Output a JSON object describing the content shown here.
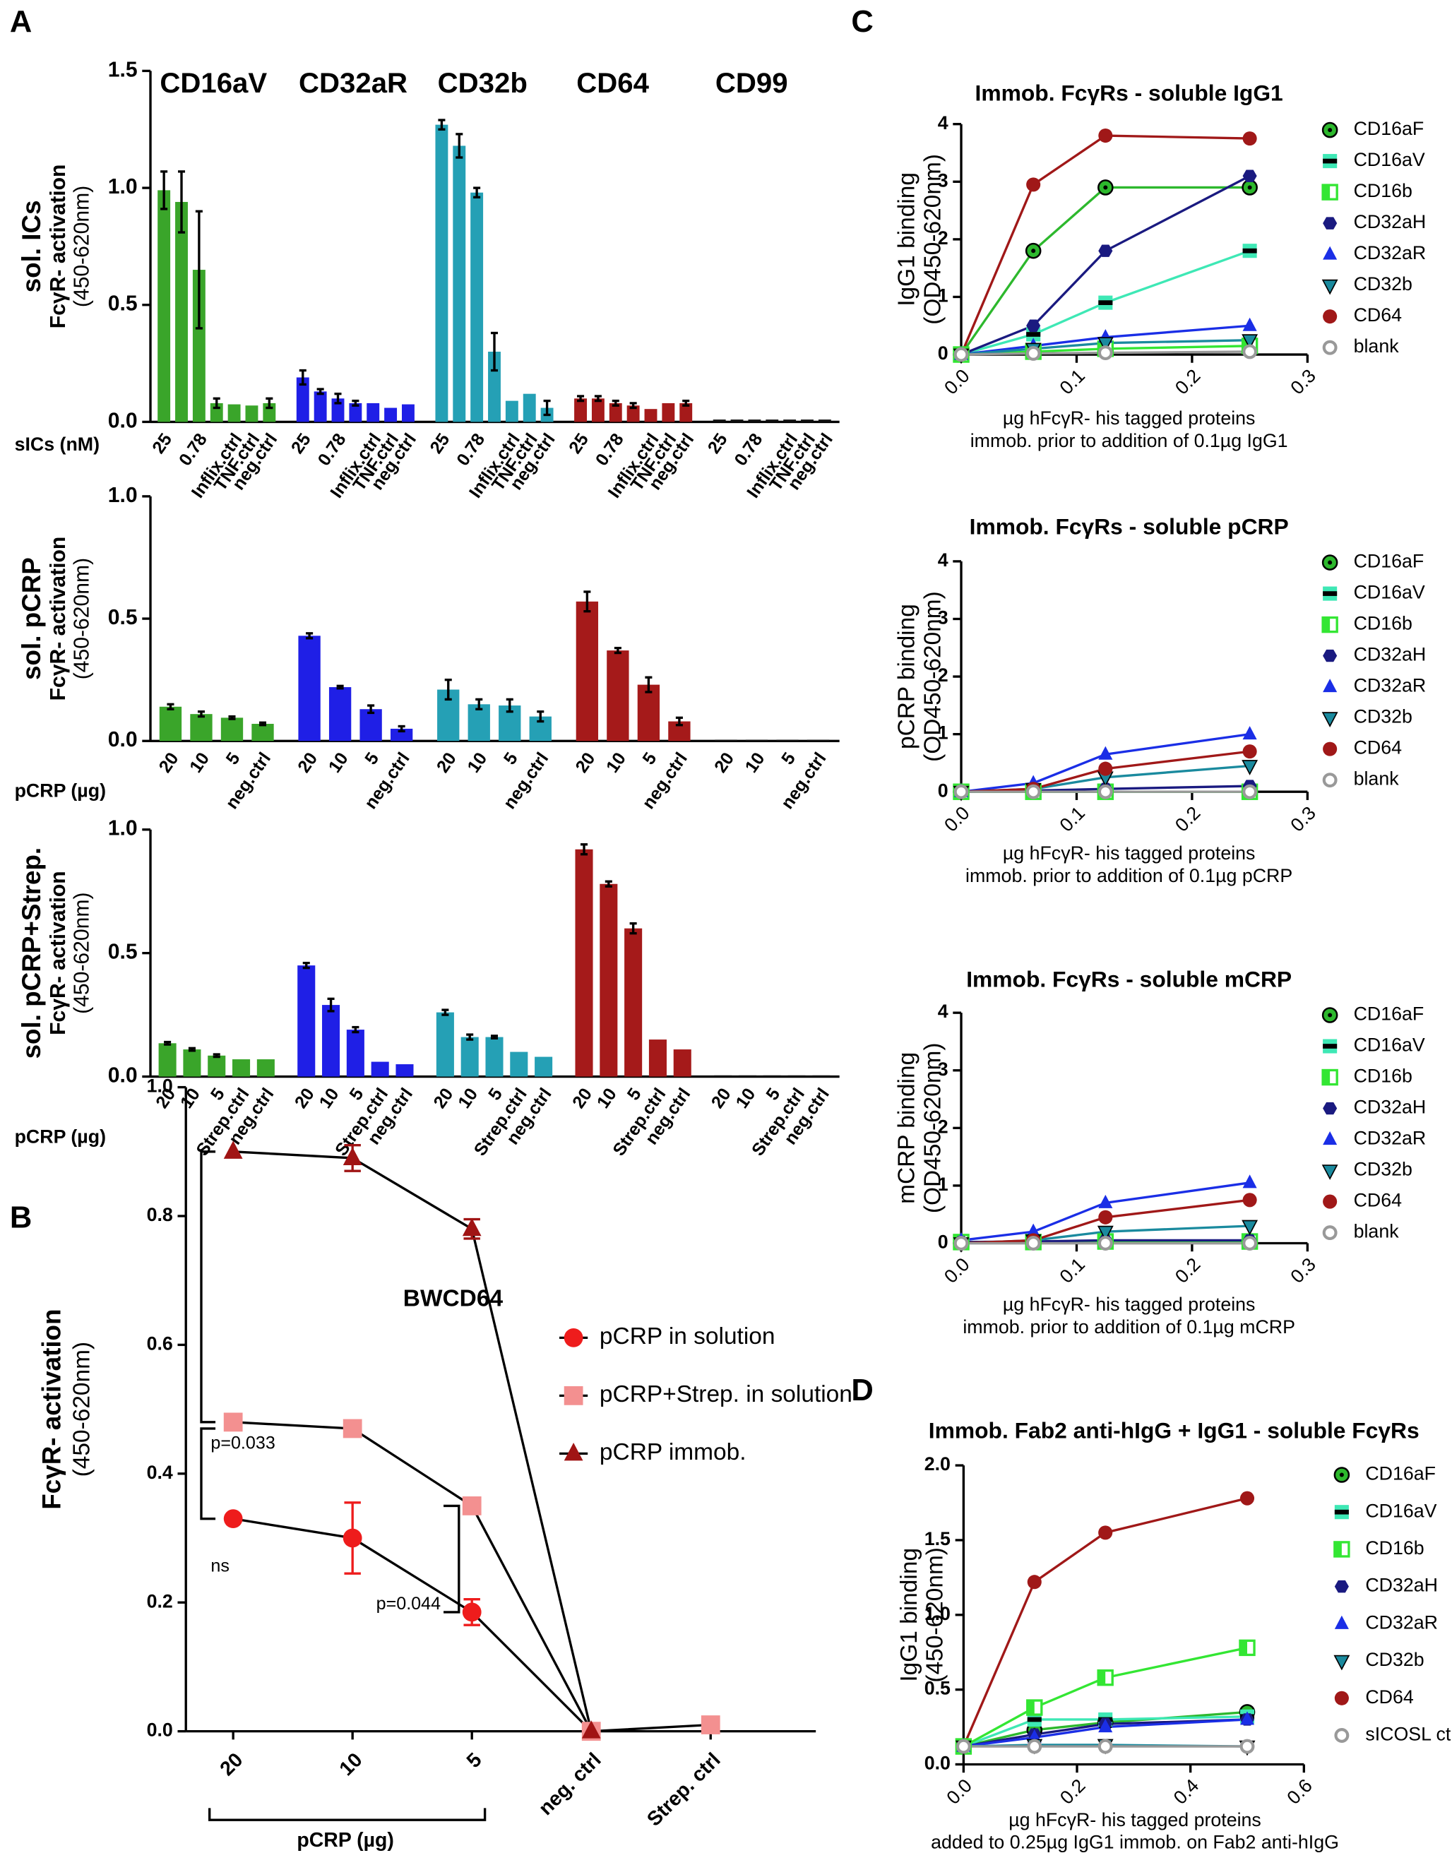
{
  "panel_labels": [
    "A",
    "B",
    "C",
    "D"
  ],
  "chart_data": [
    {
      "type": "bar",
      "y_label": [
        "sol. ICs",
        "FcγR- activation",
        "(450-620nm)"
      ],
      "x_label": "sICs (nM)",
      "categories": [
        "25",
        null,
        "0.78",
        null,
        "Inflix.ctrl",
        "TNF.ctrl",
        "neg.ctrl"
      ],
      "ylim": [
        0,
        1.5
      ],
      "yticks": [
        {
          "value": 0,
          "label": "0.0"
        },
        0.5,
        {
          "value": 1,
          "label": "1.0"
        },
        1.5
      ],
      "series": [
        {
          "name": "CD16aV",
          "color": "#3aa52a",
          "values": [
            0.99,
            0.94,
            0.65,
            0.08,
            0.075,
            0.07,
            0.08
          ],
          "errors": [
            0.08,
            0.13,
            0.25,
            0.02,
            null,
            null,
            0.02
          ]
        },
        {
          "name": "CD32aR",
          "color": "#1f1fe6",
          "values": [
            0.19,
            0.13,
            0.1,
            0.08,
            0.08,
            0.06,
            0.075
          ],
          "errors": [
            0.03,
            0.01,
            0.02,
            0.01,
            null,
            null,
            null
          ]
        },
        {
          "name": "CD32b",
          "color": "#25a0b5",
          "values": [
            1.27,
            1.18,
            0.98,
            0.3,
            0.09,
            0.12,
            0.06
          ],
          "errors": [
            0.02,
            0.05,
            0.02,
            0.08,
            null,
            null,
            0.03
          ]
        },
        {
          "name": "CD64",
          "color": "#a51a1a",
          "values": [
            0.1,
            0.1,
            0.08,
            0.07,
            0.055,
            0.08,
            0.08
          ],
          "errors": [
            0.01,
            0.01,
            0.01,
            0.01,
            null,
            null,
            0.01
          ]
        },
        {
          "name": "CD99",
          "color": "#111111",
          "values": [
            0.01,
            0.01,
            0.01,
            0.01,
            0.01,
            0.01,
            0.01
          ],
          "errors": [
            null,
            null,
            null,
            null,
            null,
            null,
            null
          ]
        }
      ]
    },
    {
      "type": "bar",
      "y_label": [
        "sol. pCRP",
        "FcγR- activation",
        "(450-620nm)"
      ],
      "x_label": "pCRP (µg)",
      "categories": [
        "20",
        "10",
        "5",
        "neg.ctrl"
      ],
      "ylim": [
        0,
        1
      ],
      "yticks": [
        {
          "value": 0,
          "label": "0.0"
        },
        0.5,
        {
          "value": 1,
          "label": "1.0"
        }
      ],
      "series": [
        {
          "color": "#3aa52a",
          "values": [
            0.14,
            0.11,
            0.095,
            0.07
          ],
          "errors": [
            0.01,
            0.01,
            0.005,
            0.005
          ]
        },
        {
          "color": "#1f1fe6",
          "values": [
            0.43,
            0.22,
            0.13,
            0.05
          ],
          "errors": [
            0.01,
            0.005,
            0.015,
            0.01
          ]
        },
        {
          "color": "#25a0b5",
          "values": [
            0.21,
            0.15,
            0.145,
            0.1
          ],
          "errors": [
            0.04,
            0.02,
            0.025,
            0.02
          ]
        },
        {
          "color": "#a51a1a",
          "values": [
            0.57,
            0.37,
            0.23,
            0.08
          ],
          "errors": [
            0.04,
            0.01,
            0.03,
            0.015
          ]
        },
        {
          "color": "#111111",
          "values": [
            0.005,
            0.005,
            0.005,
            0.005
          ],
          "errors": [
            null,
            null,
            null,
            null
          ]
        }
      ]
    },
    {
      "type": "bar",
      "y_label": [
        "sol. pCRP+Strep.",
        "FcγR- activation",
        "(450-620nm)"
      ],
      "x_label": "pCRP (µg)",
      "categories": [
        "20",
        "10",
        "5",
        "Strep.ctrl",
        "neg.ctrl"
      ],
      "ylim": [
        0,
        1
      ],
      "yticks": [
        {
          "value": 0,
          "label": "0.0"
        },
        0.5,
        {
          "value": 1,
          "label": "1.0"
        }
      ],
      "series": [
        {
          "color": "#3aa52a",
          "values": [
            0.135,
            0.11,
            0.085,
            0.07,
            0.07
          ],
          "errors": [
            0.005,
            0.005,
            0.005,
            null,
            null
          ]
        },
        {
          "color": "#1f1fe6",
          "values": [
            0.45,
            0.29,
            0.19,
            0.06,
            0.05
          ],
          "errors": [
            0.01,
            0.025,
            0.01,
            null,
            null
          ]
        },
        {
          "color": "#25a0b5",
          "values": [
            0.26,
            0.16,
            0.16,
            0.1,
            0.08
          ],
          "errors": [
            0.01,
            0.01,
            0.005,
            null,
            null
          ]
        },
        {
          "color": "#a51a1a",
          "values": [
            0.92,
            0.78,
            0.6,
            0.15,
            0.11
          ],
          "errors": [
            0.02,
            0.01,
            0.02,
            null,
            null
          ]
        },
        {
          "color": "#111111",
          "values": [
            0.005,
            0.005,
            0.005,
            0.005,
            0.005
          ],
          "errors": [
            null,
            null,
            null,
            null,
            null
          ]
        }
      ]
    },
    {
      "type": "line",
      "title": "BWCD64",
      "y_label": [
        "FcγR- activation",
        "(450-620nm)"
      ],
      "line_color": "#000000",
      "categories": [
        "20",
        "10",
        "5",
        "neg. ctrl",
        "Strep. ctrl"
      ],
      "group_label": "pCRP (µg)",
      "ylim": [
        0,
        1
      ],
      "yticks": [
        {
          "value": 0,
          "label": "0.0"
        },
        0.2,
        0.4,
        0.6,
        0.8,
        {
          "value": 1,
          "label": "1.0"
        }
      ],
      "annotations": [
        "p=0.033",
        "ns",
        "p=0.044"
      ],
      "series": [
        {
          "name": "pCRP in solution",
          "color": "#ee1c1c",
          "marker": "circle",
          "values": [
            0.33,
            0.3,
            0.185,
            0,
            null
          ],
          "errors": [
            null,
            0.055,
            0.02,
            null,
            null
          ]
        },
        {
          "name": "pCRP+Strep. in solution",
          "color": "#f39090",
          "marker": "square",
          "values": [
            0.48,
            0.47,
            0.35,
            0,
            0.01
          ]
        },
        {
          "name": "pCRP immob.",
          "color": "#a01414",
          "marker": "triangle",
          "values": [
            0.9,
            0.89,
            0.78,
            0,
            null
          ],
          "errors": [
            null,
            0.02,
            0.015,
            null,
            null
          ]
        }
      ]
    },
    {
      "type": "line",
      "title": "Immob. FcγRs - soluble IgG1",
      "y_label": [
        "IgG1 binding",
        "(OD450-620nm)"
      ],
      "x_label": [
        "µg hFcγR- his tagged proteins",
        "immob. prior to addition of 0.1µg IgG1"
      ],
      "x": [
        0,
        0.0625,
        0.125,
        0.25
      ],
      "xlim": [
        0,
        0.3
      ],
      "xticks": [
        {
          "value": 0,
          "label": "0.0"
        },
        0.1,
        0.2,
        0.3
      ],
      "ylim": [
        0,
        4
      ],
      "yticks": [
        0,
        1,
        2,
        3,
        4
      ],
      "series": [
        {
          "name": "CD16aF",
          "color": "#2db82d",
          "marker": "circle-dot",
          "values": [
            0,
            1.8,
            2.9,
            2.9
          ]
        },
        {
          "name": "CD16aV",
          "color": "#3ee8b5",
          "marker": "square-bar",
          "values": [
            0,
            0.35,
            0.9,
            1.8
          ]
        },
        {
          "name": "CD16b",
          "color": "#33e633",
          "marker": "square-half",
          "values": [
            0,
            0.05,
            0.1,
            0.15
          ]
        },
        {
          "name": "CD32aH",
          "color": "#1a1a80",
          "marker": "hexagon",
          "values": [
            0,
            0.5,
            1.8,
            3.1
          ]
        },
        {
          "name": "CD32aR",
          "color": "#1a2ee6",
          "marker": "triangle",
          "values": [
            0,
            0.15,
            0.3,
            0.5
          ]
        },
        {
          "name": "CD32b",
          "color": "#1a8a9e",
          "marker": "triangle-down",
          "values": [
            0,
            0.1,
            0.2,
            0.25
          ]
        },
        {
          "name": "CD64",
          "color": "#a01818",
          "marker": "circle",
          "values": [
            0,
            2.95,
            3.8,
            3.75
          ]
        },
        {
          "name": "blank",
          "color": "#999999",
          "marker": "circle-open",
          "values": [
            0,
            0.02,
            0.03,
            0.05
          ]
        }
      ]
    },
    {
      "type": "line",
      "title": "Immob. FcγRs - soluble pCRP",
      "y_label": [
        "pCRP binding",
        "(OD450-620nm)"
      ],
      "x_label": [
        "µg hFcγR- his tagged proteins",
        "immob. prior to addition of 0.1µg pCRP"
      ],
      "x": [
        0,
        0.0625,
        0.125,
        0.25
      ],
      "xlim": [
        0,
        0.3
      ],
      "xticks": [
        {
          "value": 0,
          "label": "0.0"
        },
        0.1,
        0.2,
        0.3
      ],
      "ylim": [
        0,
        4
      ],
      "yticks": [
        0,
        1,
        2,
        3,
        4
      ],
      "series": [
        {
          "name": "CD16aF",
          "color": "#2db82d",
          "marker": "circle-dot",
          "values": [
            0,
            0,
            0,
            0
          ]
        },
        {
          "name": "CD16aV",
          "color": "#3ee8b5",
          "marker": "square-bar",
          "values": [
            0,
            0,
            0,
            0
          ]
        },
        {
          "name": "CD16b",
          "color": "#33e633",
          "marker": "square-half",
          "values": [
            0,
            0,
            0,
            0
          ]
        },
        {
          "name": "CD32aH",
          "color": "#1a1a80",
          "marker": "hexagon",
          "values": [
            0,
            0.02,
            0.05,
            0.1
          ]
        },
        {
          "name": "CD32aR",
          "color": "#1a2ee6",
          "marker": "triangle",
          "values": [
            0,
            0.15,
            0.65,
            1.0
          ]
        },
        {
          "name": "CD32b",
          "color": "#1a8a9e",
          "marker": "triangle-down",
          "values": [
            0,
            0.05,
            0.25,
            0.45
          ]
        },
        {
          "name": "CD64",
          "color": "#a01818",
          "marker": "circle",
          "values": [
            0,
            0.05,
            0.4,
            0.7
          ]
        },
        {
          "name": "blank",
          "color": "#999999",
          "marker": "circle-open",
          "values": [
            0,
            0,
            0,
            0
          ]
        }
      ]
    },
    {
      "type": "line",
      "title": "Immob. FcγRs - soluble mCRP",
      "y_label": [
        "mCRP binding",
        "(OD450-620nm)"
      ],
      "x_label": [
        "µg hFcγR- his tagged proteins",
        "immob. prior to addition of 0.1µg mCRP"
      ],
      "x": [
        0,
        0.0625,
        0.125,
        0.25
      ],
      "xlim": [
        0,
        0.3
      ],
      "xticks": [
        {
          "value": 0,
          "label": "0.0"
        },
        0.1,
        0.2,
        0.3
      ],
      "ylim": [
        0,
        4
      ],
      "yticks": [
        0,
        1,
        2,
        3,
        4
      ],
      "series": [
        {
          "name": "CD16aF",
          "color": "#2db82d",
          "marker": "circle-dot",
          "values": [
            0.02,
            0.02,
            0.02,
            0.02
          ]
        },
        {
          "name": "CD16aV",
          "color": "#3ee8b5",
          "marker": "square-bar",
          "values": [
            0.02,
            0.02,
            0.02,
            0.02
          ]
        },
        {
          "name": "CD16b",
          "color": "#33e633",
          "marker": "square-half",
          "values": [
            0.02,
            0.02,
            0.03,
            0.03
          ]
        },
        {
          "name": "CD32aH",
          "color": "#1a1a80",
          "marker": "hexagon",
          "values": [
            0.02,
            0.03,
            0.05,
            0.05
          ]
        },
        {
          "name": "CD32aR",
          "color": "#1a2ee6",
          "marker": "triangle",
          "values": [
            0.05,
            0.2,
            0.7,
            1.05
          ]
        },
        {
          "name": "CD32b",
          "color": "#1a8a9e",
          "marker": "triangle-down",
          "values": [
            0,
            0.05,
            0.2,
            0.3
          ]
        },
        {
          "name": "CD64",
          "color": "#a01818",
          "marker": "circle",
          "values": [
            0,
            0.05,
            0.45,
            0.75
          ]
        },
        {
          "name": "blank",
          "color": "#999999",
          "marker": "circle-open",
          "values": [
            0,
            0,
            0,
            0
          ]
        }
      ]
    },
    {
      "type": "line",
      "title": "Immob. Fab2 anti-hIgG + IgG1 - soluble FcγRs",
      "y_label": [
        "IgG1 binding",
        "(450-620nm)"
      ],
      "x_label": [
        "µg hFcγR- his tagged proteins",
        "added to 0.25µg IgG1 immob. on Fab2 anti-hIgG"
      ],
      "x": [
        0,
        0.125,
        0.25,
        0.5
      ],
      "xlim": [
        0,
        0.6
      ],
      "xticks": [
        {
          "value": 0,
          "label": "0.0"
        },
        0.2,
        0.4,
        0.6
      ],
      "ylim": [
        0,
        2
      ],
      "yticks": [
        {
          "value": 0,
          "label": "0.0"
        },
        0.5,
        {
          "value": 1,
          "label": "1.0"
        },
        1.5,
        {
          "value": 2,
          "label": "2.0"
        }
      ],
      "series": [
        {
          "name": "CD16aF",
          "color": "#2db82d",
          "marker": "circle-dot",
          "values": [
            0.12,
            0.23,
            0.28,
            0.35
          ]
        },
        {
          "name": "CD16aV",
          "color": "#3ee8b5",
          "marker": "square-bar",
          "values": [
            0.12,
            0.3,
            0.3,
            0.32
          ]
        },
        {
          "name": "CD16b",
          "color": "#33e633",
          "marker": "square-half",
          "values": [
            0.12,
            0.38,
            0.58,
            0.78
          ]
        },
        {
          "name": "CD32aH",
          "color": "#1a1a80",
          "marker": "hexagon",
          "values": [
            0.12,
            0.2,
            0.27,
            0.3
          ]
        },
        {
          "name": "CD32aR",
          "color": "#1a2ee6",
          "marker": "triangle",
          "values": [
            0.12,
            0.18,
            0.25,
            0.3
          ]
        },
        {
          "name": "CD32b",
          "color": "#1a8a9e",
          "marker": "triangle-down",
          "values": [
            0.12,
            0.13,
            0.13,
            0.12
          ]
        },
        {
          "name": "CD64",
          "color": "#a01818",
          "marker": "circle",
          "values": [
            0.12,
            1.22,
            1.55,
            1.78
          ]
        },
        {
          "name": "sICOSL ctrl.",
          "color": "#999999",
          "marker": "circle-open",
          "values": [
            0.12,
            0.12,
            0.12,
            0.12
          ]
        }
      ]
    }
  ]
}
